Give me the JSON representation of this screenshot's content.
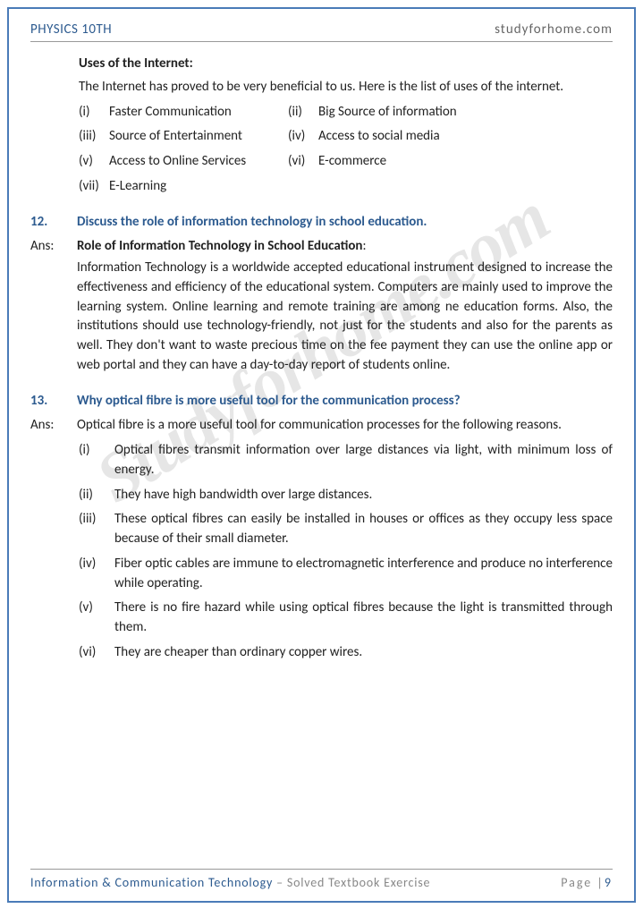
{
  "header": {
    "left": "PHYSICS 10TH",
    "right": "studyforhome.com"
  },
  "watermark": "Studyforhome.com",
  "uses": {
    "title": "Uses of the Internet:",
    "intro": "The Internet has proved to be very beneficial to us. Here is the list of uses of the internet.",
    "items": [
      {
        "num": "(i)",
        "text": "Faster Communication"
      },
      {
        "num": "(ii)",
        "text": "Big Source of information"
      },
      {
        "num": "(iii)",
        "text": "Source of Entertainment"
      },
      {
        "num": "(iv)",
        "text": "Access to social media"
      },
      {
        "num": "(v)",
        "text": "Access to Online Services"
      },
      {
        "num": "(vi)",
        "text": "E-commerce"
      },
      {
        "num": "(vii)",
        "text": "E-Learning"
      }
    ]
  },
  "q12": {
    "num": "12.",
    "question": "Discuss the role of information technology in school education.",
    "ansLabel": "Ans:",
    "ansTitle": "Role of Information Technology in School Education",
    "ansTitleColon": ":",
    "ansText": "Information Technology is a worldwide accepted educational instrument designed to increase the effectiveness and efficiency of the educational system. Computers are mainly used to improve the learning system. Online learning and remote training are among ne education forms. Also, the institutions should use technology-friendly, not just for the students and also for the parents as well. They don't want to waste precious time on the fee payment they can use the online app or web portal and they can have a day-to-day report of students online."
  },
  "q13": {
    "num": "13.",
    "question": "Why optical fibre is more useful tool for the communication process?",
    "ansLabel": "Ans:",
    "ansIntro": "Optical fibre is a more useful tool for communication processes for the following reasons.",
    "items": [
      {
        "num": "(i)",
        "text": "Optical fibres transmit information over large distances via light, with minimum loss of energy."
      },
      {
        "num": "(ii)",
        "text": "They have high bandwidth over large distances."
      },
      {
        "num": "(iii)",
        "text": "These optical fibres can easily be installed in houses or offices as they occupy less space because of their small diameter."
      },
      {
        "num": "(iv)",
        "text": "Fiber optic cables are immune to electromagnetic interference and produce no interference while operating."
      },
      {
        "num": "(v)",
        "text": "There is no fire hazard while using optical fibres because the light is transmitted through them."
      },
      {
        "num": "(vi)",
        "text": "They are cheaper than ordinary copper wires."
      }
    ]
  },
  "footer": {
    "chapter": "Information & Communication Technology",
    "subtitle": " – Solved Textbook Exercise",
    "pageLabel": "Page |",
    "pageNum": "9"
  },
  "colors": {
    "border": "#4a7bb8",
    "heading": "#2c5a8f",
    "text": "#222",
    "grey": "#888",
    "watermark": "rgba(100,100,100,0.16)"
  }
}
